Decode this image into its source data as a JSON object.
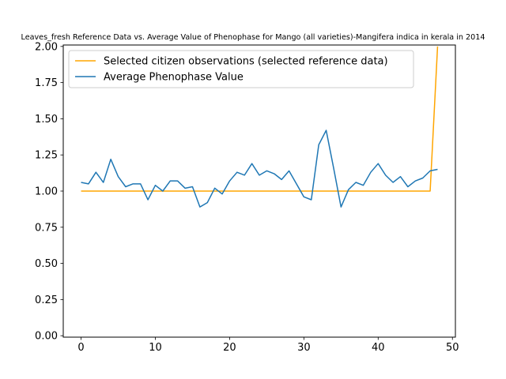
{
  "chart_data": {
    "type": "line",
    "title": "Leaves_fresh Reference Data vs. Average Value of Phenophase for Mango (all varieties)-Mangifera indica in kerala in 2014",
    "xlabel": "",
    "ylabel": "",
    "xlim": [
      -2.4,
      50.4
    ],
    "ylim": [
      -0.01,
      2.01
    ],
    "x_ticks": [
      0,
      10,
      20,
      30,
      40,
      50
    ],
    "y_ticks": [
      0.0,
      0.25,
      0.5,
      0.75,
      1.0,
      1.25,
      1.5,
      1.75,
      2.0
    ],
    "x_tick_labels": [
      "0",
      "10",
      "20",
      "30",
      "40",
      "50"
    ],
    "y_tick_labels": [
      "0.00",
      "0.25",
      "0.50",
      "0.75",
      "1.00",
      "1.25",
      "1.50",
      "1.75",
      "2.00"
    ],
    "legend_position": "upper-left",
    "grid": false,
    "series": [
      {
        "name": "Selected citizen observations (selected reference data)",
        "color": "#ffa500",
        "x": [
          0,
          47,
          48
        ],
        "y": [
          1.0,
          1.0,
          2.0
        ]
      },
      {
        "name": "Average Phenophase Value",
        "color": "#1f77b4",
        "x": [
          0,
          1,
          2,
          3,
          4,
          5,
          6,
          7,
          8,
          9,
          10,
          11,
          12,
          13,
          14,
          15,
          16,
          17,
          18,
          19,
          20,
          21,
          22,
          23,
          24,
          25,
          26,
          27,
          28,
          29,
          30,
          31,
          32,
          33,
          34,
          35,
          36,
          37,
          38,
          39,
          40,
          41,
          42,
          43,
          44,
          45,
          46,
          47,
          48
        ],
        "y": [
          1.06,
          1.05,
          1.13,
          1.06,
          1.22,
          1.1,
          1.03,
          1.05,
          1.05,
          0.94,
          1.04,
          1.0,
          1.07,
          1.07,
          1.02,
          1.03,
          0.89,
          0.92,
          1.02,
          0.98,
          1.07,
          1.13,
          1.11,
          1.19,
          1.11,
          1.14,
          1.12,
          1.08,
          1.14,
          1.05,
          0.96,
          0.94,
          1.32,
          1.42,
          1.16,
          0.89,
          1.01,
          1.06,
          1.04,
          1.13,
          1.19,
          1.11,
          1.06,
          1.1,
          1.03,
          1.07,
          1.09,
          1.14,
          1.15
        ]
      }
    ]
  }
}
